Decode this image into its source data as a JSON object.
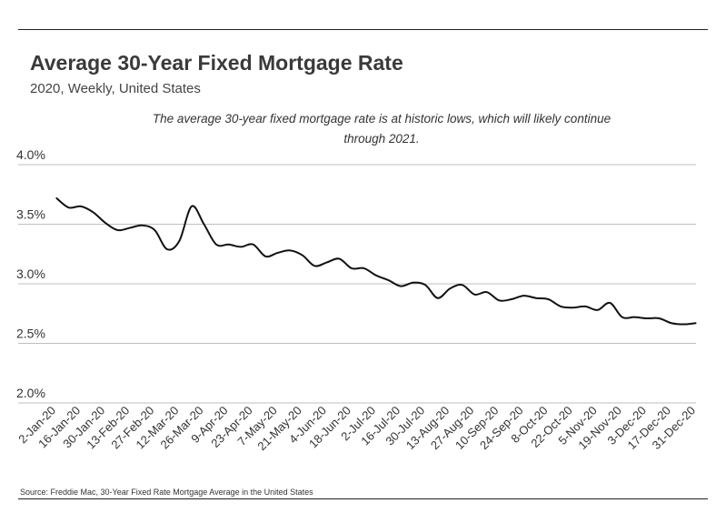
{
  "header": {
    "title": "Average 30-Year Fixed Mortgage Rate",
    "subtitle": "2020, Weekly, United States",
    "annotation": "The average 30-year fixed mortgage rate is at historic lows, which will likely continue through 2021."
  },
  "footer": {
    "source": "Source:  Freddie Mac, 30-Year Fixed Rate Mortgage Average in the United States"
  },
  "colors": {
    "line": "#111111",
    "grid": "#bfbfbf",
    "text": "#333333"
  },
  "chart_data": {
    "type": "line",
    "title": "Average 30-Year Fixed Mortgage Rate",
    "subtitle": "2020, Weekly, United States",
    "xlabel": "",
    "ylabel": "",
    "ylim": [
      2.0,
      4.0
    ],
    "yticks": [
      "2.0%",
      "2.5%",
      "3.0%",
      "3.5%",
      "4.0%"
    ],
    "grid": true,
    "x_tick_labels": [
      "2-Jan-20",
      "16-Jan-20",
      "30-Jan-20",
      "13-Feb-20",
      "27-Feb-20",
      "12-Mar-20",
      "26-Mar-20",
      "9-Apr-20",
      "23-Apr-20",
      "7-May-20",
      "21-May-20",
      "4-Jun-20",
      "18-Jun-20",
      "2-Jul-20",
      "16-Jul-20",
      "30-Jul-20",
      "13-Aug-20",
      "27-Aug-20",
      "10-Sep-20",
      "24-Sep-20",
      "8-Oct-20",
      "22-Oct-20",
      "5-Nov-20",
      "19-Nov-20",
      "3-Dec-20",
      "17-Dec-20",
      "31-Dec-20"
    ],
    "series": [
      {
        "x": [
          "2-Jan-20",
          "9-Jan-20",
          "16-Jan-20",
          "23-Jan-20",
          "30-Jan-20",
          "6-Feb-20",
          "13-Feb-20",
          "20-Feb-20",
          "27-Feb-20",
          "5-Mar-20",
          "12-Mar-20",
          "19-Mar-20",
          "26-Mar-20",
          "2-Apr-20",
          "9-Apr-20",
          "16-Apr-20",
          "23-Apr-20",
          "30-Apr-20",
          "7-May-20",
          "14-May-20",
          "21-May-20",
          "28-May-20",
          "4-Jun-20",
          "11-Jun-20",
          "18-Jun-20",
          "25-Jun-20",
          "2-Jul-20",
          "9-Jul-20",
          "16-Jul-20",
          "23-Jul-20",
          "30-Jul-20",
          "6-Aug-20",
          "13-Aug-20",
          "20-Aug-20",
          "27-Aug-20",
          "3-Sep-20",
          "10-Sep-20",
          "17-Sep-20",
          "24-Sep-20",
          "1-Oct-20",
          "8-Oct-20",
          "15-Oct-20",
          "22-Oct-20",
          "29-Oct-20",
          "5-Nov-20",
          "12-Nov-20",
          "19-Nov-20",
          "26-Nov-20",
          "3-Dec-20",
          "10-Dec-20",
          "17-Dec-20",
          "24-Dec-20",
          "31-Dec-20"
        ],
        "values": [
          3.72,
          3.64,
          3.65,
          3.6,
          3.51,
          3.45,
          3.47,
          3.49,
          3.45,
          3.29,
          3.36,
          3.65,
          3.5,
          3.33,
          3.33,
          3.31,
          3.33,
          3.23,
          3.26,
          3.28,
          3.24,
          3.15,
          3.18,
          3.21,
          3.13,
          3.13,
          3.07,
          3.03,
          2.98,
          3.01,
          2.99,
          2.88,
          2.96,
          2.99,
          2.91,
          2.93,
          2.86,
          2.87,
          2.9,
          2.88,
          2.87,
          2.81,
          2.8,
          2.81,
          2.78,
          2.84,
          2.72,
          2.72,
          2.71,
          2.71,
          2.67,
          2.66,
          2.67
        ]
      }
    ]
  }
}
